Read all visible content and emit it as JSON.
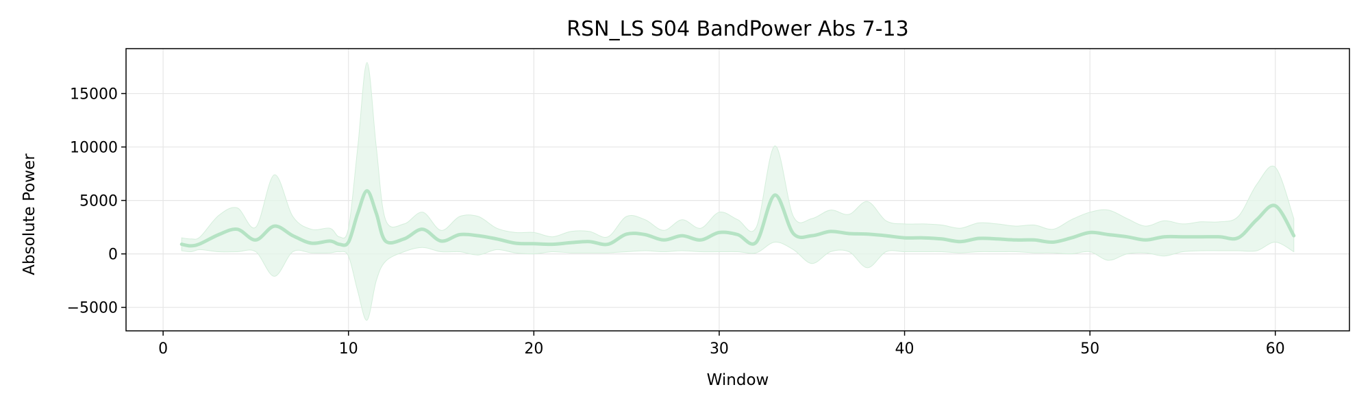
{
  "chart_data": {
    "type": "line",
    "title": "RSN_LS S04 BandPower Abs 7-13",
    "xlabel": "Window",
    "ylabel": "Absolute Power",
    "xlim": [
      -2,
      64
    ],
    "ylim": [
      -7200,
      19200
    ],
    "xticks": [
      0,
      10,
      20,
      30,
      40,
      50,
      60
    ],
    "yticks": [
      -5000,
      0,
      5000,
      10000,
      15000
    ],
    "ytick_labels": [
      "−5000",
      "0",
      "5000",
      "10000",
      "15000"
    ],
    "grid": true,
    "legend": "none",
    "colors": {
      "line": "#b5e3c4",
      "band": "#e3f4e8",
      "band_edge": "#d4eedb",
      "grid": "#e6e6e6",
      "axis": "#000000"
    },
    "series": [
      {
        "x": [
          1,
          1.5,
          2,
          3,
          4,
          5,
          6,
          7,
          8,
          9,
          9.5,
          10,
          10.5,
          11,
          11.5,
          12,
          13,
          14,
          15,
          16,
          17,
          18,
          19,
          20,
          21,
          22,
          23,
          24,
          25,
          26,
          27,
          28,
          29,
          30,
          31,
          32,
          33,
          34,
          35,
          36,
          37,
          38,
          39,
          40,
          41,
          42,
          43,
          44,
          45,
          46,
          47,
          48,
          49,
          50,
          51,
          52,
          53,
          54,
          55,
          56,
          57,
          58,
          59,
          60,
          61
        ],
        "mean": [
          900,
          750,
          950,
          1800,
          2300,
          1300,
          2600,
          1700,
          1000,
          1200,
          900,
          1100,
          3800,
          5900,
          3800,
          1200,
          1400,
          2300,
          1200,
          1800,
          1700,
          1400,
          1000,
          950,
          900,
          1050,
          1150,
          900,
          1850,
          1800,
          1300,
          1700,
          1300,
          2000,
          1800,
          1100,
          5500,
          1900,
          1700,
          2100,
          1900,
          1850,
          1700,
          1500,
          1500,
          1400,
          1150,
          1450,
          1400,
          1300,
          1300,
          1100,
          1500,
          2000,
          1800,
          1600,
          1300,
          1600,
          1600,
          1600,
          1600,
          1500,
          3200,
          4500,
          1700
        ],
        "upper": [
          1500,
          1400,
          1600,
          3600,
          4300,
          2500,
          7400,
          3500,
          2300,
          2400,
          1600,
          2400,
          10000,
          17900,
          10000,
          3200,
          2800,
          3900,
          2200,
          3500,
          3500,
          2400,
          2000,
          2000,
          1600,
          2100,
          2100,
          1600,
          3500,
          3200,
          2200,
          3200,
          2400,
          3900,
          3200,
          2500,
          10100,
          3500,
          3300,
          4100,
          3700,
          4900,
          3100,
          2800,
          2800,
          2700,
          2400,
          2900,
          2800,
          2600,
          2700,
          2300,
          3200,
          3900,
          4100,
          3300,
          2600,
          3100,
          2800,
          3000,
          3000,
          3500,
          6500,
          8100,
          3300
        ],
        "lower": [
          300,
          200,
          400,
          200,
          200,
          200,
          -2100,
          200,
          100,
          100,
          200,
          -200,
          -3500,
          -6200,
          -2500,
          -700,
          200,
          600,
          200,
          200,
          -100,
          400,
          100,
          0,
          200,
          100,
          100,
          100,
          200,
          300,
          200,
          300,
          200,
          200,
          200,
          100,
          1100,
          400,
          -900,
          200,
          200,
          -1300,
          200,
          200,
          200,
          200,
          100,
          200,
          200,
          200,
          100,
          100,
          0,
          200,
          -600,
          0,
          100,
          -200,
          200,
          300,
          300,
          300,
          300,
          1100,
          200
        ]
      }
    ]
  }
}
